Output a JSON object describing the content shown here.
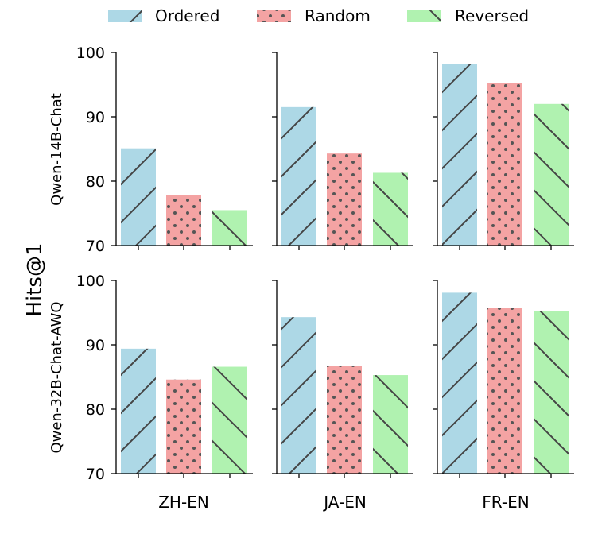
{
  "chart_data": {
    "type": "bar",
    "ylabel": "Hits@1",
    "ylim": [
      70,
      100
    ],
    "yticks": [
      70,
      80,
      90,
      100
    ],
    "categories": [
      "ZH-EN",
      "JA-EN",
      "FR-EN"
    ],
    "legend": {
      "placement": "top-center",
      "items": [
        {
          "name": "Ordered",
          "color": "#add8e6",
          "hatch": "diagonal-up"
        },
        {
          "name": "Random",
          "color": "#f4a3a3",
          "hatch": "dots"
        },
        {
          "name": "Reversed",
          "color": "#b0f2b0",
          "hatch": "diagonal-down"
        }
      ]
    },
    "rows": [
      {
        "model": "Qwen-14B-Chat",
        "panels": [
          {
            "category": "ZH-EN",
            "values": [
              85.1,
              77.9,
              75.5
            ]
          },
          {
            "category": "JA-EN",
            "values": [
              91.5,
              84.3,
              81.3
            ]
          },
          {
            "category": "FR-EN",
            "values": [
              98.2,
              95.2,
              92.0
            ]
          }
        ]
      },
      {
        "model": "Qwen-32B-Chat-AWQ",
        "panels": [
          {
            "category": "ZH-EN",
            "values": [
              89.4,
              84.6,
              86.6
            ]
          },
          {
            "category": "JA-EN",
            "values": [
              94.3,
              86.7,
              85.3
            ]
          },
          {
            "category": "FR-EN",
            "values": [
              98.1,
              95.7,
              95.2
            ]
          }
        ]
      }
    ]
  }
}
